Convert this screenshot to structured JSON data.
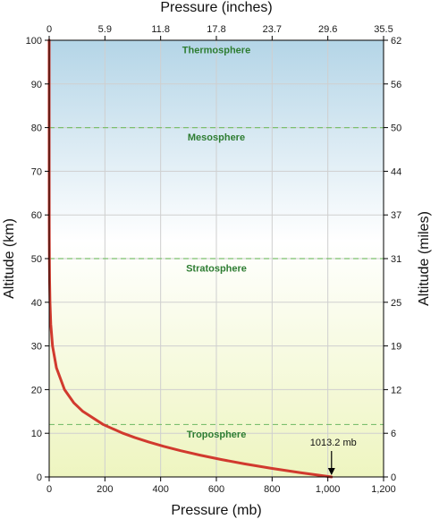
{
  "chart_data": {
    "type": "line",
    "xlabel_bottom": "Pressure (mb)",
    "xlabel_top": "Pressure (inches)",
    "ylabel_left": "Altitude (km)",
    "ylabel_right": "Altitude (miles)",
    "xlim": [
      0,
      1200
    ],
    "ylim": [
      0,
      100
    ],
    "x_ticks_bottom": [
      "0",
      "200",
      "400",
      "600",
      "800",
      "1,000",
      "1,200"
    ],
    "x_ticks_top": [
      "0",
      "5.9",
      "11.8",
      "17.8",
      "23.7",
      "29.6",
      "35.5"
    ],
    "y_ticks_left": [
      "0",
      "10",
      "20",
      "30",
      "40",
      "50",
      "60",
      "70",
      "80",
      "90",
      "100"
    ],
    "y_ticks_right": [
      "0",
      "6",
      "12",
      "19",
      "25",
      "31",
      "37",
      "44",
      "50",
      "56",
      "62"
    ],
    "grid": true,
    "layer_boundaries_km": [
      12,
      50,
      80
    ],
    "layers": [
      {
        "name": "Thermosphere",
        "altitude_km": 97
      },
      {
        "name": "Mesosphere",
        "altitude_km": 77
      },
      {
        "name": "Stratosphere",
        "altitude_km": 47
      },
      {
        "name": "Troposphere",
        "altitude_km": 9
      }
    ],
    "series": [
      {
        "x": [
          1013.2,
          899,
          795,
          701,
          617,
          541,
          472,
          411,
          357,
          308,
          265,
          194,
          121,
          88,
          55,
          26,
          12,
          5.7,
          2.9,
          1.5,
          0.8,
          0.4,
          0.2,
          0.05,
          0.01,
          0.003
        ],
        "y": [
          0,
          1,
          2,
          3,
          4,
          5,
          6,
          7,
          8,
          9,
          10,
          12,
          15,
          17,
          20,
          25,
          30,
          35,
          40,
          45,
          50,
          55,
          60,
          70,
          80,
          100
        ]
      }
    ],
    "annotation": {
      "text": "1013.2 mb",
      "x": 1013.2,
      "y": 0
    },
    "colors": {
      "line": "#d13a2e",
      "boundary": "#7cbf6e",
      "layer_text": "#2e7d32",
      "grid": "#cfcfcf",
      "bg_top": "#b4d5e7",
      "bg_middle": "#ffffff",
      "bg_bottom": "#eef5c0"
    }
  }
}
